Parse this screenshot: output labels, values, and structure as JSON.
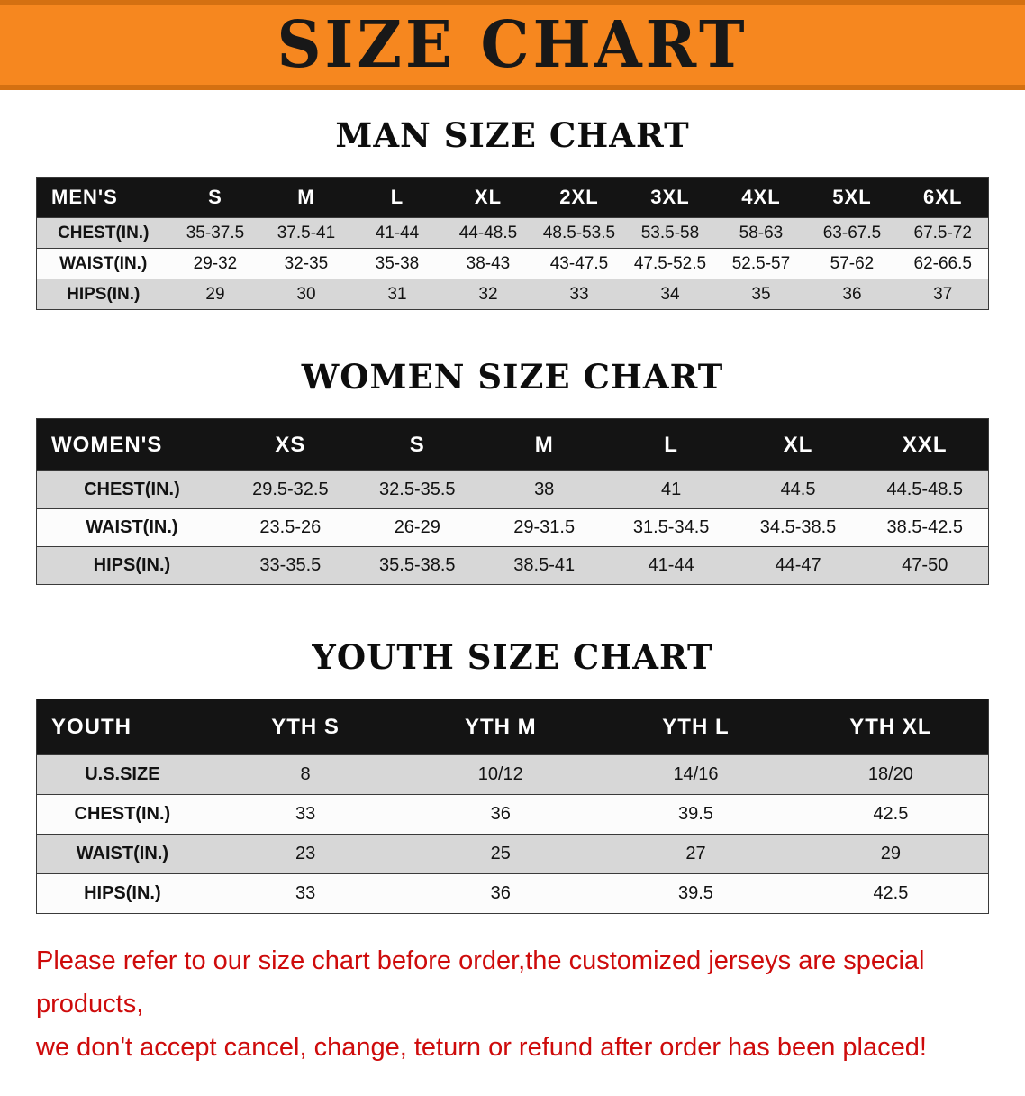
{
  "banner": {
    "title": "SIZE CHART"
  },
  "colors": {
    "banner_bg": "#f6871f",
    "banner_text": "#181818",
    "table_header_bg": "#141414",
    "table_header_text": "#ffffff",
    "row_shaded": "#d7d7d7",
    "row_plain": "#fcfcfc",
    "disclaimer_text": "#ce0b0b"
  },
  "sections": [
    {
      "heading": "MAN SIZE CHART",
      "table": {
        "header": [
          "MEN'S",
          "S",
          "M",
          "L",
          "XL",
          "2XL",
          "3XL",
          "4XL",
          "5XL",
          "6XL"
        ],
        "rows": [
          [
            "CHEST(IN.)",
            "35-37.5",
            "37.5-41",
            "41-44",
            "44-48.5",
            "48.5-53.5",
            "53.5-58",
            "58-63",
            "63-67.5",
            "67.5-72"
          ],
          [
            "WAIST(IN.)",
            "29-32",
            "32-35",
            "35-38",
            "38-43",
            "43-47.5",
            "47.5-52.5",
            "52.5-57",
            "57-62",
            "62-66.5"
          ],
          [
            "HIPS(IN.)",
            "29",
            "30",
            "31",
            "32",
            "33",
            "34",
            "35",
            "36",
            "37"
          ]
        ]
      }
    },
    {
      "heading": "WOMEN SIZE CHART",
      "table": {
        "header": [
          "WOMEN'S",
          "XS",
          "S",
          "M",
          "L",
          "XL",
          "XXL"
        ],
        "rows": [
          [
            "CHEST(IN.)",
            "29.5-32.5",
            "32.5-35.5",
            "38",
            "41",
            "44.5",
            "44.5-48.5"
          ],
          [
            "WAIST(IN.)",
            "23.5-26",
            "26-29",
            "29-31.5",
            "31.5-34.5",
            "34.5-38.5",
            "38.5-42.5"
          ],
          [
            "HIPS(IN.)",
            "33-35.5",
            "35.5-38.5",
            "38.5-41",
            "41-44",
            "44-47",
            "47-50"
          ]
        ]
      }
    },
    {
      "heading": "YOUTH SIZE CHART",
      "table": {
        "header": [
          "YOUTH",
          "YTH S",
          "YTH M",
          "YTH L",
          "YTH XL"
        ],
        "rows": [
          [
            "U.S.SIZE",
            "8",
            "10/12",
            "14/16",
            "18/20"
          ],
          [
            "CHEST(IN.)",
            "33",
            "36",
            "39.5",
            "42.5"
          ],
          [
            "WAIST(IN.)",
            "23",
            "25",
            "27",
            "29"
          ],
          [
            "HIPS(IN.)",
            "33",
            "36",
            "39.5",
            "42.5"
          ]
        ]
      }
    }
  ],
  "disclaimer": {
    "line1": "Please refer to our size chart before order,the customized jerseys are special products,",
    "line2": "we don't accept cancel, change, teturn or refund after order has been placed!"
  }
}
